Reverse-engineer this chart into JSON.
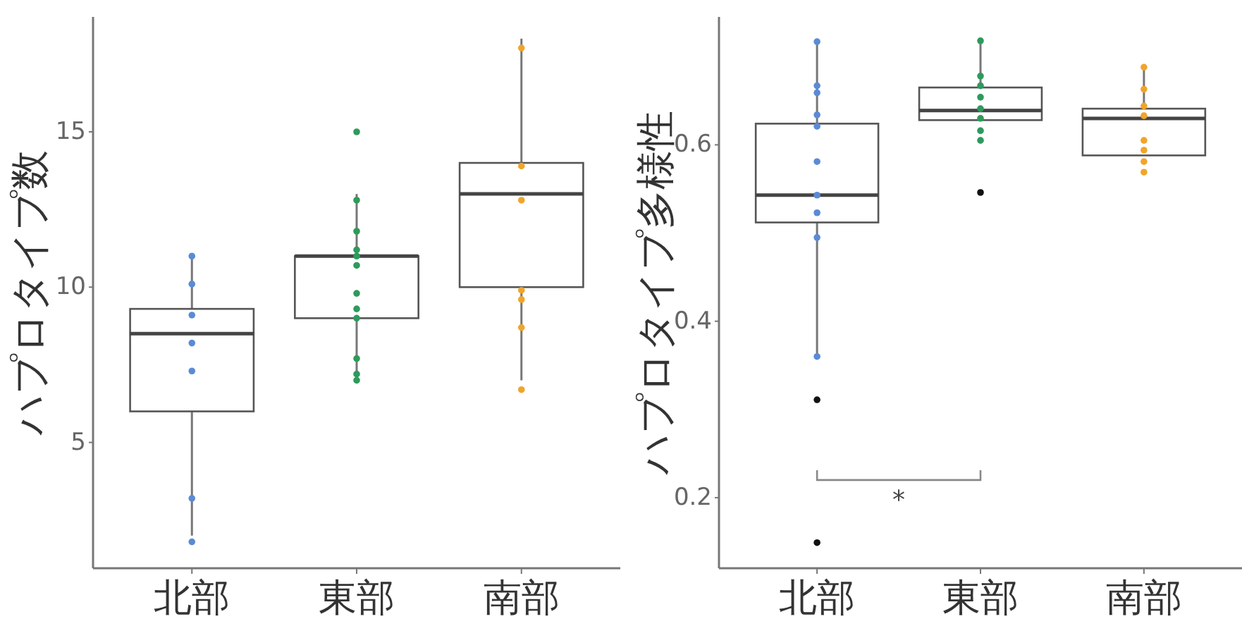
{
  "chart_data": [
    {
      "type": "box",
      "ylabel": "ハプロタイプ数",
      "categories": [
        "北部",
        "東部",
        "南部"
      ],
      "ylim": [
        0.95,
        18.7
      ],
      "yticks": [
        5,
        10,
        15
      ],
      "grid": false,
      "boxes": [
        {
          "low": 2.0,
          "q1": 6.0,
          "median": 8.5,
          "q3": 9.3,
          "high": 11.0
        },
        {
          "low": 7.0,
          "q1": 9.0,
          "median": 11.0,
          "q3": 11.0,
          "high": 13.0
        },
        {
          "low": 7.0,
          "q1": 10.0,
          "median": 13.0,
          "q3": 14.0,
          "high": 18.0
        }
      ],
      "series": [
        {
          "type": "scatter",
          "x": [
            "北部",
            "北部",
            "北部",
            "北部",
            "北部",
            "北部",
            "北部"
          ],
          "values": [
            11.0,
            10.1,
            9.1,
            8.2,
            7.3,
            3.2,
            1.8
          ],
          "color": "#5b8ad6"
        },
        {
          "type": "scatter",
          "x": [
            "東部",
            "東部",
            "東部",
            "東部",
            "東部",
            "東部",
            "東部",
            "東部",
            "東部",
            "東部",
            "東部",
            "東部"
          ],
          "values": [
            15.0,
            12.8,
            11.8,
            11.2,
            11.0,
            10.7,
            9.8,
            9.3,
            9.0,
            7.7,
            7.2,
            7.0
          ],
          "color": "#2e9a5c"
        },
        {
          "type": "scatter",
          "x": [
            "南部",
            "南部",
            "南部",
            "南部",
            "南部",
            "南部",
            "南部"
          ],
          "values": [
            17.7,
            13.9,
            12.8,
            9.9,
            9.6,
            8.7,
            6.7
          ],
          "color": "#f0a52a"
        }
      ]
    },
    {
      "type": "box",
      "ylabel": "ハプロタイプ多様性",
      "categories": [
        "北部",
        "東部",
        "南部"
      ],
      "ylim": [
        0.12,
        0.745
      ],
      "yticks": [
        0.2,
        0.4,
        0.6
      ],
      "grid": false,
      "annotations": [
        "*"
      ],
      "boxes": [
        {
          "low": 0.36,
          "q1": 0.512,
          "median": 0.543,
          "q3": 0.624,
          "high": 0.717,
          "outliers": [
            0.311,
            0.149
          ]
        },
        {
          "low": 0.628,
          "q1": 0.628,
          "median": 0.639,
          "q3": 0.665,
          "high": 0.718,
          "outliers": [
            0.546
          ]
        },
        {
          "low": 0.588,
          "q1": 0.588,
          "median": 0.63,
          "q3": 0.641,
          "high": 0.688
        }
      ],
      "series": [
        {
          "type": "scatter",
          "x": [
            "北部",
            "北部",
            "北部",
            "北部",
            "北部",
            "北部",
            "北部",
            "北部",
            "北部",
            "北部"
          ],
          "values": [
            0.717,
            0.667,
            0.659,
            0.634,
            0.621,
            0.581,
            0.543,
            0.523,
            0.495,
            0.36
          ],
          "color": "#5b8ad6"
        },
        {
          "type": "scatter",
          "x": [
            "東部",
            "東部",
            "東部",
            "東部",
            "東部",
            "東部",
            "東部",
            "東部"
          ],
          "values": [
            0.718,
            0.678,
            0.667,
            0.654,
            0.641,
            0.63,
            0.616,
            0.605
          ],
          "color": "#2e9a5c"
        },
        {
          "type": "scatter",
          "x": [
            "南部",
            "南部",
            "南部",
            "南部",
            "南部",
            "南部",
            "南部",
            "南部"
          ],
          "values": [
            0.688,
            0.663,
            0.644,
            0.633,
            0.605,
            0.594,
            0.581,
            0.569
          ],
          "color": "#f0a52a"
        }
      ]
    }
  ]
}
